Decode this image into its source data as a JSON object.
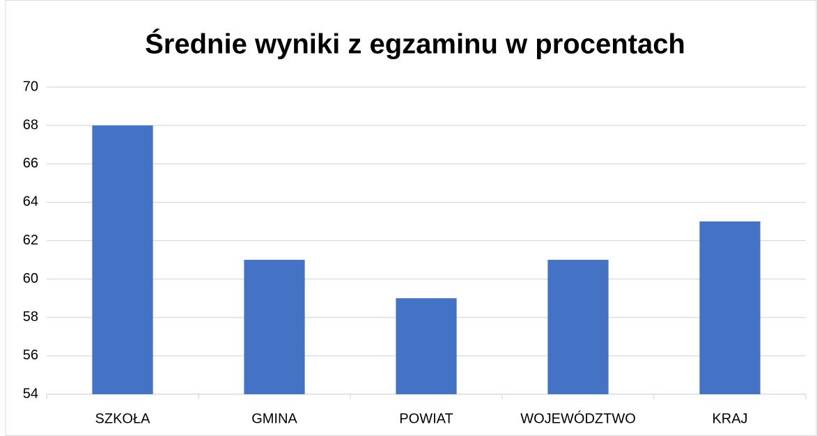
{
  "chart_data": {
    "type": "bar",
    "title": "Średnie wyniki z egzaminu w procentach",
    "categories": [
      "SZKOŁA",
      "GMINA",
      "POWIAT",
      "WOJEWÓDZTWO",
      "KRAJ"
    ],
    "values": [
      68,
      61,
      59,
      61,
      63
    ],
    "color": "#4472c4",
    "ylim": [
      54,
      70
    ],
    "yticks": [
      54,
      56,
      58,
      60,
      62,
      64,
      66,
      68,
      70
    ],
    "grid": true
  }
}
